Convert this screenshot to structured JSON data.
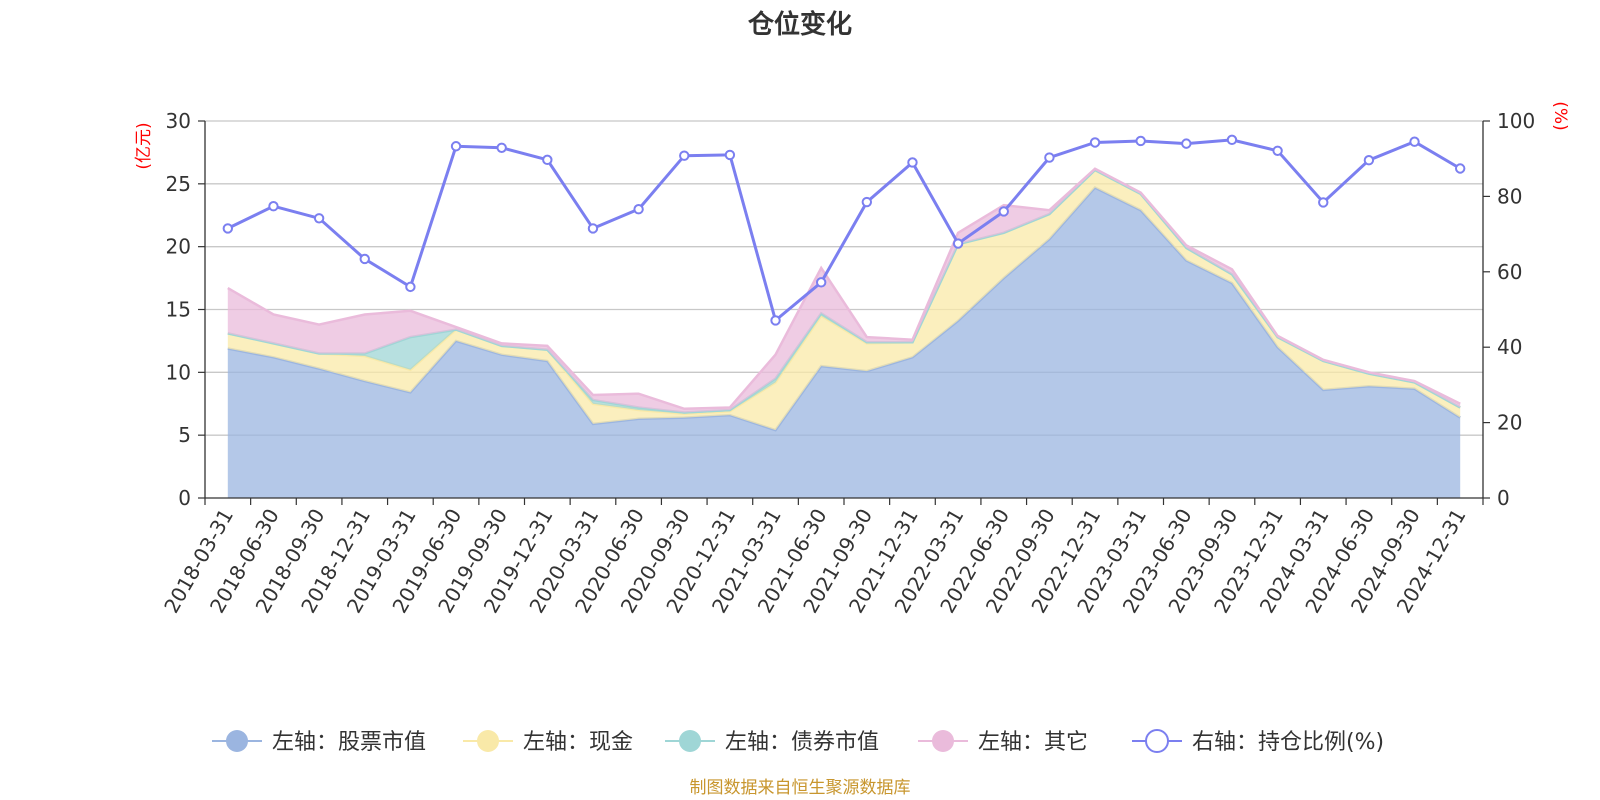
{
  "chart_data": {
    "type": "area",
    "title": "仓位变化",
    "categories": [
      "2018-03-31",
      "2018-06-30",
      "2018-09-30",
      "2018-12-31",
      "2019-03-31",
      "2019-06-30",
      "2019-09-30",
      "2019-12-31",
      "2020-03-31",
      "2020-06-30",
      "2020-09-30",
      "2020-12-31",
      "2021-03-31",
      "2021-06-30",
      "2021-09-30",
      "2021-12-31",
      "2022-03-31",
      "2022-06-30",
      "2022-09-30",
      "2022-12-31",
      "2023-03-31",
      "2023-06-30",
      "2023-09-30",
      "2023-12-31",
      "2024-03-31",
      "2024-06-30",
      "2024-09-30",
      "2024-12-31"
    ],
    "left_axis": {
      "unit_label": "(亿元)",
      "ylim": [
        0,
        30
      ],
      "ticks": [
        "0",
        "5",
        "10",
        "15",
        "20",
        "25",
        "30"
      ]
    },
    "right_axis": {
      "unit_label": "(%)",
      "ylim": [
        0,
        100
      ],
      "ticks": [
        "0",
        "20",
        "40",
        "60",
        "80",
        "100"
      ]
    },
    "series": [
      {
        "name": "左轴：股票市值",
        "axis": "left",
        "kind": "stacked-area",
        "color": "#9bb5e0",
        "values": [
          11.9,
          11.2,
          10.3,
          9.3,
          8.4,
          12.5,
          11.4,
          10.9,
          5.9,
          6.3,
          6.4,
          6.6,
          5.4,
          10.5,
          10.1,
          11.2,
          14.1,
          17.5,
          20.6,
          24.7,
          22.9,
          18.9,
          17.1,
          12.0,
          8.6,
          8.9,
          8.7,
          6.4
        ]
      },
      {
        "name": "左轴：现金",
        "axis": "left",
        "kind": "stacked-area",
        "color": "#f9e9a8",
        "values": [
          1.2,
          1.1,
          1.2,
          2.0,
          1.8,
          0.9,
          0.7,
          0.9,
          1.6,
          0.7,
          0.3,
          0.3,
          3.8,
          4.0,
          2.2,
          1.2,
          6.1,
          3.6,
          2.0,
          1.4,
          1.3,
          1.0,
          0.7,
          0.8,
          2.3,
          1.0,
          0.5,
          0.8
        ]
      },
      {
        "name": "左轴：债券市值",
        "axis": "left",
        "kind": "stacked-area",
        "color": "#9fd6d6",
        "values": [
          0,
          0,
          0,
          0.2,
          2.6,
          0,
          0,
          0,
          0.3,
          0.2,
          0.1,
          0.1,
          0.3,
          0.2,
          0.1,
          0,
          0,
          0,
          0,
          0,
          0,
          0,
          0,
          0,
          0,
          0,
          0,
          0
        ]
      },
      {
        "name": "左轴：其它",
        "axis": "left",
        "kind": "stacked-area",
        "color": "#eabbdb",
        "values": [
          3.6,
          2.3,
          2.3,
          3.1,
          2.1,
          0.2,
          0.2,
          0.3,
          0.4,
          1.1,
          0.3,
          0.2,
          1.9,
          3.6,
          0.4,
          0.2,
          0.9,
          2.2,
          0.3,
          0.1,
          0.1,
          0.2,
          0.4,
          0.1,
          0.1,
          0.1,
          0.1,
          0.3
        ]
      },
      {
        "name": "右轴：持仓比例(%)",
        "axis": "right",
        "kind": "line",
        "color": "#7b7ff0",
        "values": [
          71.5,
          77.4,
          74.2,
          63.4,
          56.0,
          93.3,
          92.9,
          89.7,
          71.5,
          76.6,
          90.8,
          91.0,
          47.1,
          57.2,
          78.5,
          89.0,
          67.5,
          76.0,
          90.3,
          94.3,
          94.7,
          94.0,
          95.0,
          92.1,
          78.4,
          89.6,
          94.5,
          87.4
        ]
      }
    ],
    "legend_position": "bottom",
    "grid": true
  },
  "source_note": "制图数据来自恒生聚源数据库"
}
